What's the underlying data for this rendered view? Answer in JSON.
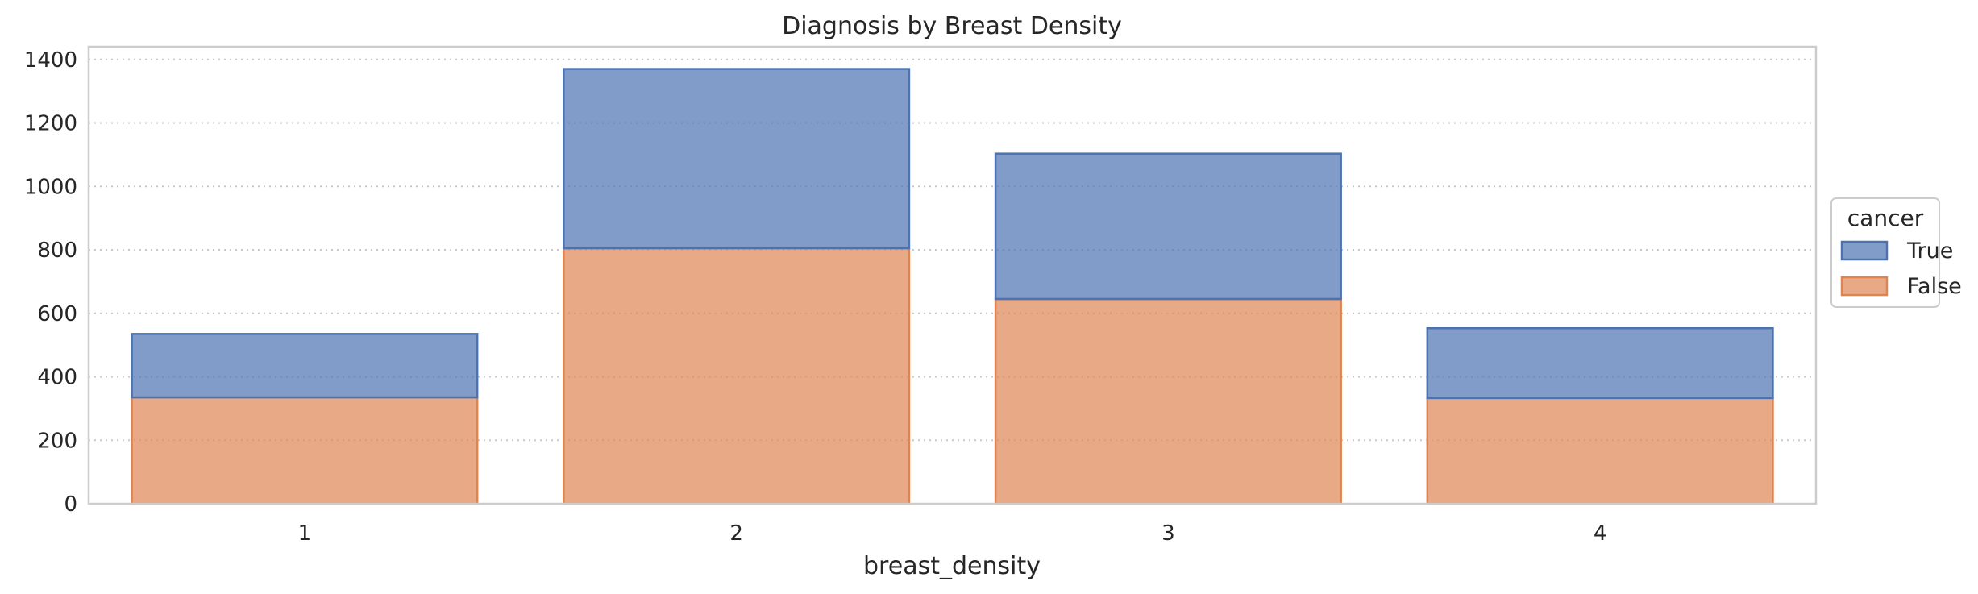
{
  "chart_data": {
    "type": "bar",
    "stacked": true,
    "title": "Diagnosis by Breast Density",
    "xlabel": "breast_density",
    "ylabel": "",
    "categories": [
      "1",
      "2",
      "3",
      "4"
    ],
    "ylim": [
      0,
      1440
    ],
    "yticks": [
      0,
      200,
      400,
      600,
      800,
      1000,
      1200,
      1400
    ],
    "grid": true,
    "legend": {
      "title": "cancer",
      "placement": "right"
    },
    "series": [
      {
        "name": "False",
        "values": [
          335,
          805,
          645,
          333
        ],
        "fill": "#dd8452",
        "edge": "#dd8452"
      },
      {
        "name": "True",
        "values": [
          200,
          565,
          458,
          220
        ],
        "fill": "#4c72b0",
        "edge": "#4c72b0"
      }
    ],
    "legend_order": [
      "True",
      "False"
    ]
  }
}
